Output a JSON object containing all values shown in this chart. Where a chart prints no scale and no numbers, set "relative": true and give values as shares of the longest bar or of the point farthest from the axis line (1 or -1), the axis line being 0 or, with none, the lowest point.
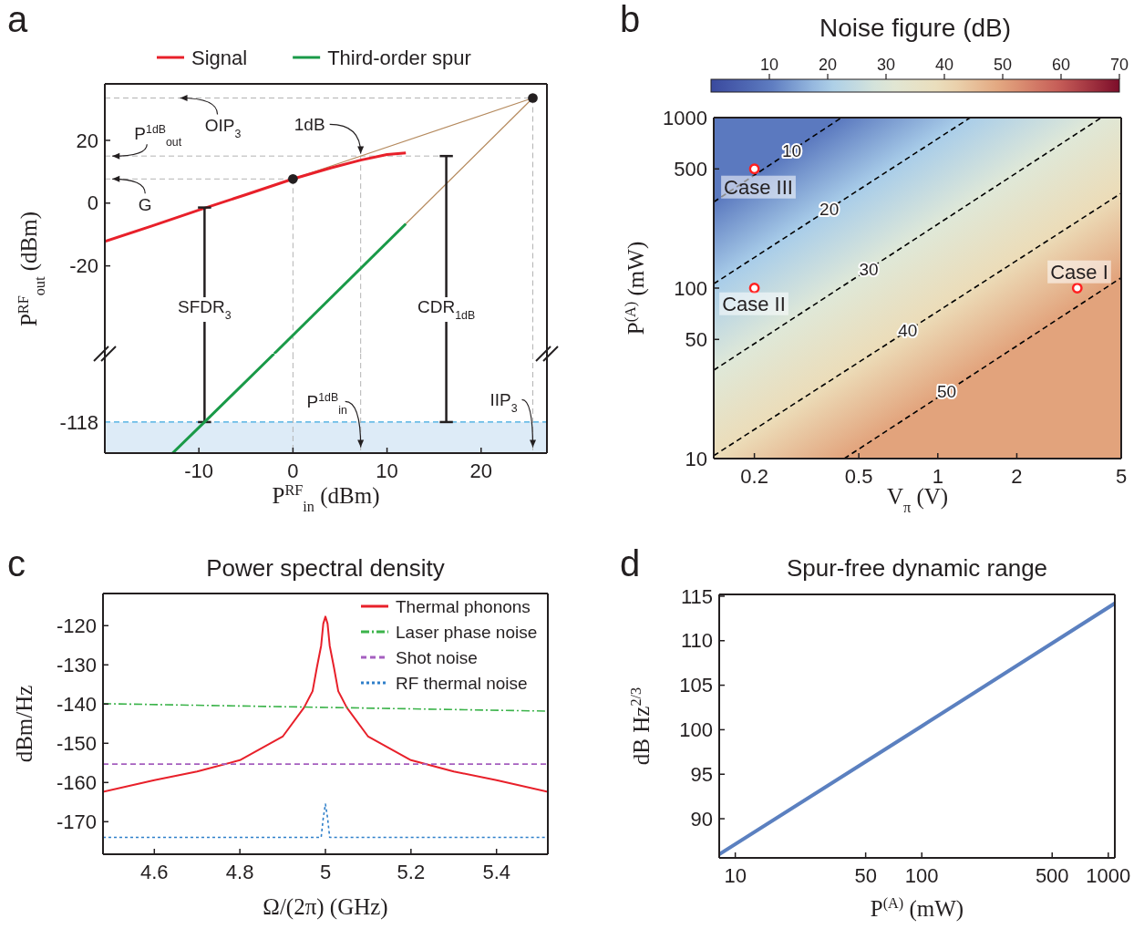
{
  "chart_data": [
    {
      "type": "line",
      "ylabel": "P$^{RF}$$_{out}$ (dBm)",
      "xlim": [
        -20,
        27
      ],
      "ylim": [
        -48,
        38
      ],
      "yticks": [
        -20,
        0,
        20
      ],
      "tick_labels": "y",
      "legend": "top",
      "annotations": [
        "a",
        {
          "text": "OIP$_{3}$",
          "x": -12,
          "y": 33.5
        },
        {
          "text": "P$^{1dB}$$_{out}$",
          "x": -19.2,
          "y": 15
        },
        {
          "text": "G",
          "x": -19.2,
          "y": 7.7
        },
        {
          "text": "1dB",
          "x": 7.2,
          "y": 15.8
        },
        {
          "text": "SFDR$_{3}$",
          "x": -9.4,
          "y": -33
        },
        {
          "text": "CDR$_{1dB}$",
          "x": 16.3,
          "y": -33
        }
      ],
      "series": [
        {
          "color": "#b3b3b3",
          "line_style": "dashed",
          "x": [
            -20,
            25.5
          ],
          "values": [
            33.5,
            33.5
          ]
        },
        {
          "color": "#b3b3b3",
          "line_style": "dashed",
          "x": [
            -20,
            16.3
          ],
          "values": [
            15,
            15
          ]
        },
        {
          "color": "#b3b3b3",
          "line_style": "dashed",
          "x": [
            -20,
            0
          ],
          "values": [
            7.7,
            7.7
          ]
        },
        {
          "color": "#b3b3b3",
          "line_style": "dashed",
          "x": [
            0,
            0
          ],
          "values": [
            7.7,
            -48
          ]
        },
        {
          "color": "#b3b3b3",
          "line_style": "dashed",
          "x": [
            7.2,
            7.2
          ],
          "values": [
            15,
            -48
          ]
        },
        {
          "color": "#b3b3b3",
          "line_style": "dashed",
          "x": [
            25.5,
            25.5
          ],
          "values": [
            33.5,
            -48
          ]
        },
        {
          "color": "#b58a5e",
          "x": [
            0,
            25.5
          ],
          "values": [
            7.7,
            33.5
          ]
        },
        {
          "color": "#b58a5e",
          "x": [
            12,
            25.5
          ],
          "values": [
            -6.6,
            33.5
          ]
        },
        {
          "name": "Signal",
          "color": "#e8202a",
          "x": [
            -20,
            -15,
            -10,
            -5,
            0,
            4,
            7.2,
            10,
            12
          ],
          "values": [
            -12.2,
            -7.3,
            -2.2,
            2.7,
            7.7,
            11.2,
            13.7,
            15.5,
            16
          ]
        },
        {
          "name": "Third-order spur",
          "color": "#1a9a48",
          "x": [
            -2,
            12
          ],
          "values": [
            -48,
            -6.6
          ]
        },
        {
          "color": "#231f20",
          "x": [
            -9.4,
            -9.4
          ],
          "values": [
            -1.4,
            -48
          ]
        },
        {
          "color": "#231f20",
          "x": [
            -10.1,
            -8.7
          ],
          "values": [
            -1.4,
            -1.4
          ]
        },
        {
          "color": "#231f20",
          "x": [
            16.3,
            16.3
          ],
          "values": [
            15,
            -48
          ]
        },
        {
          "color": "#231f20",
          "x": [
            15.6,
            17
          ],
          "values": [
            15,
            15
          ]
        },
        {
          "type": "scatter",
          "marker": "circle",
          "color": "#231f20",
          "x": [
            0,
            25.5
          ],
          "values": [
            7.7,
            33.5
          ]
        }
      ]
    },
    {
      "type": "line",
      "relative": true,
      "xlabel": "P$^{RF}$$_{in}$ (dBm)",
      "xlim": [
        -20,
        27
      ],
      "xticks": [
        -10,
        0,
        10,
        20
      ],
      "ref_lines": [
        {
          "axis": "y",
          "value": 0.3125,
          "color": "#3aa8e0",
          "line_style": "dashed"
        }
      ],
      "bands": [
        {
          "axis": "y",
          "from": 0,
          "to": 0.3125,
          "color": "#ddebf7"
        }
      ],
      "annotations": [
        {
          "text": "P$^{1dB}$$_{in}$",
          "x": 7.2,
          "y": 0.06
        },
        {
          "text": "IIP$_{3}$",
          "x": 25.5,
          "y": 0.06
        },
        "-118"
      ],
      "series": [
        {
          "color": "#b3b3b3",
          "line_style": "dashed",
          "x": [
            0,
            0
          ],
          "values": [
            1,
            0
          ]
        },
        {
          "color": "#b3b3b3",
          "line_style": "dashed",
          "x": [
            7.2,
            7.2
          ],
          "values": [
            1,
            0
          ]
        },
        {
          "color": "#b3b3b3",
          "line_style": "dashed",
          "x": [
            25.5,
            25.5
          ],
          "values": [
            1,
            0
          ]
        },
        {
          "color": "#231f20",
          "x": [
            -9.4,
            -9.4
          ],
          "values": [
            1,
            0.3125
          ]
        },
        {
          "color": "#231f20",
          "x": [
            -10.1,
            -8.7
          ],
          "values": [
            0.3125,
            0.3125
          ]
        },
        {
          "color": "#231f20",
          "x": [
            16.3,
            16.3
          ],
          "values": [
            1,
            0.3125
          ]
        },
        {
          "color": "#231f20",
          "x": [
            15.6,
            17
          ],
          "values": [
            0.3125,
            0.3125
          ]
        },
        {
          "color": "#1a9a48",
          "x": [
            -2,
            -9.4,
            -12.8
          ],
          "values": [
            1,
            0.3125,
            0
          ]
        }
      ]
    },
    {
      "type": "line",
      "xlabel": "V$_{π}$ (V)",
      "ylabel": "P$^{(A)}$ (mW)",
      "clabel": "Noise figure (dB)",
      "clim": [
        0,
        70
      ],
      "cticks": [
        10,
        20,
        30,
        40,
        50,
        60,
        70
      ],
      "log": "xy",
      "xlim": [
        0.14,
        5
      ],
      "ylim": [
        10,
        1000
      ],
      "xticks": [
        0.2,
        0.5,
        1,
        2,
        5
      ],
      "yticks": [
        10,
        50,
        100,
        500,
        1000
      ],
      "annotations": [
        "b",
        {
          "text": "10",
          "x": 0.2776,
          "y": 641
        },
        {
          "text": "20",
          "x": 0.3856,
          "y": 291
        },
        {
          "text": "30",
          "x": 0.5456,
          "y": 129
        },
        {
          "text": "40",
          "x": 0.7677,
          "y": 56.2
        },
        {
          "text": "50",
          "x": 1.0815,
          "y": 24.7
        },
        "Case III",
        "Case II",
        "Case I"
      ],
      "series": [
        {
          "color": "#000000",
          "line_style": "dashed",
          "x": [
            0.14,
            0.43
          ],
          "values": [
            320,
            1000
          ]
        },
        {
          "color": "#000000",
          "line_style": "dashed",
          "x": [
            0.14,
            1.33
          ],
          "values": [
            106,
            1000
          ]
        },
        {
          "color": "#000000",
          "line_style": "dashed",
          "x": [
            0.14,
            4.2
          ],
          "values": [
            33,
            1000
          ]
        },
        {
          "color": "#000000",
          "line_style": "dashed",
          "x": [
            0.14,
            5
          ],
          "values": [
            10.4,
            360
          ]
        },
        {
          "color": "#000000",
          "line_style": "dashed",
          "x": [
            0.44,
            5
          ],
          "values": [
            10,
            115
          ]
        },
        {
          "type": "scatter",
          "marker": "circle",
          "color": "#ff2020",
          "x": [
            0.2,
            0.2,
            3.4
          ],
          "values": [
            500,
            100,
            100
          ]
        }
      ]
    },
    {
      "type": "line",
      "title": "Power spectral density",
      "xlabel": "Ω/(2π) (GHz)",
      "ylabel": "dBm/Hz",
      "xlim": [
        4.48,
        5.52
      ],
      "xticks": [
        4.6,
        4.8,
        5,
        5.2,
        5.4
      ],
      "ylim": [
        -178.3,
        -111.8
      ],
      "yticks": [
        -170,
        -160,
        -150,
        -140,
        -130,
        -120
      ],
      "legend": "top right",
      "annotations": [
        "c"
      ],
      "series": [
        {
          "name": "Thermal phonons",
          "color": "#e8202a",
          "line_style": "solid",
          "x": [
            4.48,
            4.6,
            4.7,
            4.8,
            4.9,
            4.95,
            4.97,
            4.98,
            4.99,
            4.995,
            5,
            5.005,
            5.01,
            5.02,
            5.03,
            5.05,
            5.1,
            5.2,
            5.3,
            5.4,
            5.52
          ],
          "values": [
            -162.4,
            -159.4,
            -157.2,
            -154.3,
            -148.3,
            -140.9,
            -136.7,
            -130.7,
            -125.1,
            -119.5,
            -117.7,
            -119.5,
            -125.1,
            -130.7,
            -136.7,
            -140.9,
            -148.3,
            -154.3,
            -157.2,
            -159.4,
            -162.4
          ]
        },
        {
          "name": "Laser phase noise",
          "color": "#3bb34a",
          "line_style": "dashdot",
          "x": [
            4.48,
            5.52
          ],
          "values": [
            -139.9,
            -141.8
          ]
        },
        {
          "name": "Shot noise",
          "color": "#a55fbf",
          "line_style": "dashed",
          "x": [
            4.48,
            5.52
          ],
          "values": [
            -155.3,
            -155.3
          ]
        },
        {
          "name": "RF thermal noise",
          "color": "#2f7fc9",
          "line_style": "dotted",
          "x": [
            4.48,
            4.99,
            4.995,
            5,
            5.005,
            5.01,
            5.52
          ],
          "values": [
            -174,
            -174,
            -169,
            -165.5,
            -169,
            -174,
            -174
          ]
        }
      ]
    },
    {
      "type": "line",
      "title": "Spur-free dynamic range",
      "xlabel": "P$^{(A)}$ (mW)",
      "ylabel": "dB Hz$^{2/3}$",
      "log": "x",
      "xlim": [
        8.2,
        1084
      ],
      "xticks": [
        10,
        50,
        100,
        500,
        1000
      ],
      "ylim": [
        85.6,
        115.2
      ],
      "yticks": [
        90,
        95,
        100,
        105,
        110,
        115
      ],
      "annotations": [
        "d"
      ],
      "series": [
        {
          "color": "#5b80c0",
          "x": [
            8.2,
            100,
            1084
          ],
          "values": [
            86,
            100.4,
            114.2
          ]
        }
      ]
    }
  ]
}
